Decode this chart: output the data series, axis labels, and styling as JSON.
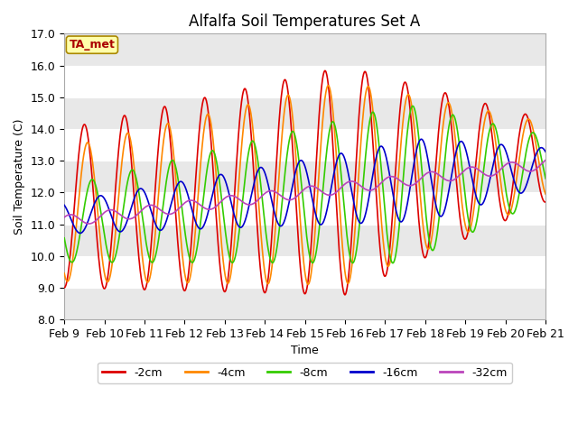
{
  "title": "Alfalfa Soil Temperatures Set A",
  "xlabel": "Time",
  "ylabel": "Soil Temperature (C)",
  "ylim": [
    8.0,
    17.0
  ],
  "yticks": [
    8.0,
    9.0,
    10.0,
    11.0,
    12.0,
    13.0,
    14.0,
    15.0,
    16.0,
    17.0
  ],
  "xtick_labels": [
    "Feb 9",
    "Feb 10",
    "Feb 11",
    "Feb 12",
    "Feb 13",
    "Feb 14",
    "Feb 15",
    "Feb 16",
    "Feb 17",
    "Feb 18",
    "Feb 19",
    "Feb 20",
    "Feb 21"
  ],
  "colors": {
    "-2cm": "#dd0000",
    "-4cm": "#ff8800",
    "-8cm": "#33cc00",
    "-16cm": "#0000cc",
    "-32cm": "#bb44bb"
  },
  "annotation_text": "TA_met",
  "annotation_bg": "#ffffaa",
  "annotation_border": "#aa8800",
  "title_fontsize": 12,
  "label_fontsize": 9,
  "tick_fontsize": 9
}
